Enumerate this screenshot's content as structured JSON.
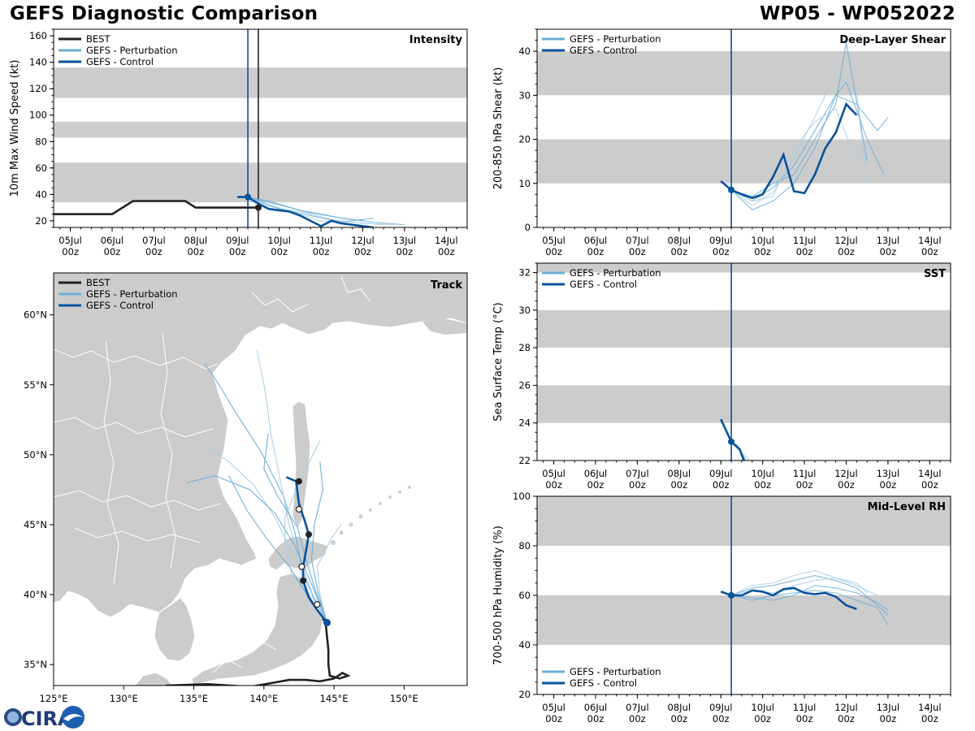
{
  "header": {
    "title": "GEFS Diagnostic Comparison",
    "storm": "WP05 - WP052022"
  },
  "logo": {
    "text": "CIRA"
  },
  "legend": {
    "best": "BEST",
    "perturbation": "GEFS - Perturbation",
    "control": "GEFS - Control"
  },
  "colors": {
    "best": "#222222",
    "perturbation": "#6baed6",
    "perturbation_light": "#a9cfe6",
    "control": "#08519c",
    "band": "#cccccc",
    "land": "#cccccc"
  },
  "time_axis": {
    "ticks": [
      {
        "day": 0,
        "label1": "05Jul",
        "label2": "00z"
      },
      {
        "day": 1,
        "label1": "06Jul",
        "label2": "00z"
      },
      {
        "day": 2,
        "label1": "07Jul",
        "label2": "00z"
      },
      {
        "day": 3,
        "label1": "08Jul",
        "label2": "00z"
      },
      {
        "day": 4,
        "label1": "09Jul",
        "label2": "00z"
      },
      {
        "day": 5,
        "label1": "10Jul",
        "label2": "00z"
      },
      {
        "day": 6,
        "label1": "11Jul",
        "label2": "00z"
      },
      {
        "day": 7,
        "label1": "12Jul",
        "label2": "00z"
      },
      {
        "day": 8,
        "label1": "13Jul",
        "label2": "00z"
      },
      {
        "day": 9,
        "label1": "14Jul",
        "label2": "00z"
      }
    ],
    "xlim_days": [
      -0.4,
      9.5
    ],
    "init_day": 4.25
  },
  "chart_data": [
    {
      "id": "intensity",
      "type": "line",
      "title": "Intensity",
      "ylabel": "10m Max Wind Speed (kt)",
      "ylim": [
        15,
        165
      ],
      "yticks": [
        20,
        40,
        60,
        80,
        100,
        120,
        140,
        160
      ],
      "bands": [
        [
          34,
          64
        ],
        [
          83,
          95
        ],
        [
          113,
          136
        ]
      ],
      "vlines": [
        4.25,
        4.5
      ],
      "best": {
        "x": [
          -0.5,
          0,
          0.5,
          1,
          1.5,
          2,
          2.5,
          2.75,
          3,
          3.5,
          4,
          4.25,
          4.5
        ],
        "y": [
          25,
          25,
          25,
          25,
          35,
          35,
          35,
          35,
          30,
          30,
          30,
          30,
          30
        ]
      },
      "best_marker": {
        "x": 4.5,
        "y": 30
      },
      "control": {
        "x": [
          4.0,
          4.25,
          4.5,
          4.75,
          5.0,
          5.25,
          5.5,
          5.75,
          6.0,
          6.25,
          6.5,
          7.0,
          7.25
        ],
        "y": [
          38,
          38,
          33,
          29,
          28,
          27,
          24,
          20,
          16,
          20,
          18,
          16,
          15
        ]
      },
      "control_marker": {
        "x": 4.25,
        "y": 38
      },
      "perturbations": [
        {
          "x": [
            4.25,
            5,
            5.75,
            6.5,
            7.25,
            8.0
          ],
          "y": [
            38,
            32,
            26,
            22,
            19,
            17
          ]
        },
        {
          "x": [
            4.25,
            4.75,
            5.5,
            6.25,
            7.0,
            7.75
          ],
          "y": [
            38,
            31,
            27,
            21,
            18,
            17
          ]
        },
        {
          "x": [
            4.25,
            5,
            5.75,
            6.5,
            7.25
          ],
          "y": [
            38,
            29,
            24,
            19,
            22
          ]
        },
        {
          "x": [
            4.25,
            5.25,
            6.0,
            6.75,
            7.5
          ],
          "y": [
            38,
            27,
            20,
            19,
            17
          ]
        },
        {
          "x": [
            4.25,
            4.75,
            5.5,
            6.5,
            7.0
          ],
          "y": [
            38,
            35,
            28,
            22,
            20
          ]
        }
      ]
    },
    {
      "id": "shear",
      "type": "line",
      "title": "Deep-Layer Shear",
      "ylabel": "200-850 hPa Shear (kt)",
      "ylim": [
        0,
        45
      ],
      "yticks": [
        0,
        10,
        20,
        30,
        40
      ],
      "bands": [
        [
          10,
          20
        ],
        [
          30,
          40
        ]
      ],
      "vlines": [
        4.25
      ],
      "control": {
        "x": [
          4.0,
          4.25,
          4.5,
          4.75,
          5.0,
          5.25,
          5.5,
          5.75,
          6.0,
          6.25,
          6.5,
          6.75,
          7.0,
          7.25
        ],
        "y": [
          10.5,
          8.5,
          7.5,
          6.7,
          7.5,
          11.5,
          16.5,
          8.2,
          7.8,
          12,
          18,
          21.5,
          28,
          25.5
        ]
      },
      "control_marker": {
        "x": 4.25,
        "y": 8.5
      },
      "perturbations": [
        {
          "x": [
            4.25,
            4.75,
            5.25,
            5.75,
            6.25,
            6.75,
            7.25,
            7.75,
            8.0
          ],
          "y": [
            8.5,
            6,
            9,
            14,
            22,
            30,
            28,
            22,
            25
          ]
        },
        {
          "x": [
            4.25,
            4.75,
            5.25,
            5.75,
            6.25,
            6.75,
            7.25,
            7.5
          ],
          "y": [
            8.5,
            5,
            8,
            16,
            25,
            35,
            31,
            10
          ]
        },
        {
          "x": [
            4.25,
            4.75,
            5.25,
            5.75,
            6.25,
            6.75,
            7.0,
            7.5
          ],
          "y": [
            8.5,
            7,
            10,
            12,
            20,
            28,
            42,
            15
          ]
        },
        {
          "x": [
            4.25,
            4.75,
            5.25,
            5.75,
            6.25,
            6.75,
            7.25,
            7.5
          ],
          "y": [
            8.5,
            6,
            7,
            18,
            24,
            27,
            15,
            18
          ]
        },
        {
          "x": [
            4.25,
            4.75,
            5.25,
            5.75,
            6.25,
            6.75,
            7.0,
            7.5,
            7.9
          ],
          "y": [
            8.5,
            4,
            6,
            10,
            18,
            30,
            33,
            20,
            12
          ]
        }
      ]
    },
    {
      "id": "sst",
      "type": "line",
      "title": "SST",
      "ylabel": "Sea Surface Temp (°C)",
      "ylim": [
        22,
        32.5
      ],
      "yticks": [
        22,
        24,
        26,
        28,
        30,
        32
      ],
      "bands": [
        [
          24,
          26
        ],
        [
          28,
          30
        ],
        [
          32,
          34
        ]
      ],
      "vlines": [
        4.25
      ],
      "control": {
        "x": [
          4.0,
          4.25,
          4.35,
          4.45,
          4.55
        ],
        "y": [
          24.2,
          23.0,
          22.8,
          22.6,
          22.0
        ]
      },
      "control_marker": {
        "x": 4.25,
        "y": 23.0
      },
      "perturbations": [
        {
          "x": [
            4.25,
            4.45,
            4.6
          ],
          "y": [
            23.0,
            22.6,
            22.0
          ]
        },
        {
          "x": [
            4.25,
            4.5,
            4.7
          ],
          "y": [
            23.0,
            22.4,
            22.0
          ]
        },
        {
          "x": [
            4.25,
            4.4,
            4.55
          ],
          "y": [
            23.0,
            22.8,
            22.0
          ]
        }
      ]
    },
    {
      "id": "rh",
      "type": "line",
      "title": "Mid-Level RH",
      "ylabel": "700-500 hPa Humidity (%)",
      "ylim": [
        20,
        100
      ],
      "yticks": [
        20,
        40,
        60,
        80,
        100
      ],
      "bands": [
        [
          40,
          60
        ],
        [
          80,
          100
        ]
      ],
      "vlines": [
        4.25
      ],
      "control": {
        "x": [
          4.0,
          4.25,
          4.5,
          4.75,
          5.0,
          5.25,
          5.5,
          5.75,
          6.0,
          6.25,
          6.5,
          6.75,
          7.0,
          7.25
        ],
        "y": [
          61.5,
          60,
          60,
          62,
          61.5,
          60,
          62.5,
          63,
          61,
          60.5,
          61,
          59.5,
          56,
          54.5
        ]
      },
      "control_marker": {
        "x": 4.25,
        "y": 60
      },
      "perturbations": [
        {
          "x": [
            4.25,
            4.75,
            5.25,
            5.75,
            6.25,
            6.75,
            7.25,
            7.75,
            8.0
          ],
          "y": [
            60,
            63,
            64,
            66,
            68,
            66,
            63,
            56,
            52
          ]
        },
        {
          "x": [
            4.25,
            4.75,
            5.25,
            5.75,
            6.25,
            6.75,
            7.25,
            7.75
          ],
          "y": [
            60,
            64,
            65,
            68,
            70,
            67,
            64,
            60
          ]
        },
        {
          "x": [
            4.25,
            4.75,
            5.25,
            5.75,
            6.25,
            6.75,
            7.25,
            7.75,
            8.0
          ],
          "y": [
            60,
            58,
            60,
            61,
            62,
            61,
            58,
            55,
            48
          ]
        },
        {
          "x": [
            4.25,
            4.75,
            5.25,
            5.75,
            6.25,
            6.75,
            7.25,
            7.5
          ],
          "y": [
            60,
            62,
            61,
            64,
            66,
            67,
            65,
            61
          ]
        },
        {
          "x": [
            4.25,
            4.75,
            5.25,
            5.75,
            6.25,
            6.75,
            7.25,
            7.75,
            8.0
          ],
          "y": [
            60,
            59,
            58,
            60,
            64,
            63,
            61,
            57,
            54
          ]
        }
      ]
    },
    {
      "id": "track",
      "type": "track",
      "title": "Track",
      "xlim_lon": [
        125,
        154.5
      ],
      "ylim_lat": [
        33.5,
        63
      ],
      "xticks": [
        {
          "v": 125,
          "label": "125°E"
        },
        {
          "v": 130,
          "label": "130°E"
        },
        {
          "v": 135,
          "label": "135°E"
        },
        {
          "v": 140,
          "label": "140°E"
        },
        {
          "v": 145,
          "label": "145°E"
        },
        {
          "v": 150,
          "label": "150°E"
        }
      ],
      "yticks": [
        {
          "v": 35,
          "label": "35°N"
        },
        {
          "v": 40,
          "label": "40°N"
        },
        {
          "v": 45,
          "label": "45°N"
        },
        {
          "v": 50,
          "label": "50°N"
        },
        {
          "v": 55,
          "label": "55°N"
        },
        {
          "v": 60,
          "label": "60°N"
        }
      ],
      "best": {
        "lon": [
          133,
          136,
          139,
          141.8,
          143,
          144,
          145,
          145.6,
          146,
          145.4,
          144.7,
          144.6,
          144.6,
          144.5,
          144.4,
          144.2
        ],
        "lat": [
          33.5,
          33.6,
          33.4,
          33.9,
          33.9,
          33.8,
          34.0,
          34.4,
          34.2,
          34.0,
          34.2,
          35.0,
          36.0,
          37.0,
          38.0,
          38.3
        ]
      },
      "control": {
        "lon": [
          144.5,
          143.8,
          143.2,
          142.8,
          142.8,
          143.0,
          143.2,
          142.9,
          142.5,
          142.3,
          141.6
        ],
        "lat": [
          38.0,
          38.9,
          39.8,
          41.0,
          42.0,
          43.1,
          44.3,
          45.3,
          46.5,
          48.1,
          48.4
        ]
      },
      "control_markers_filled": [
        {
          "lon": 142.8,
          "lat": 41.0
        },
        {
          "lon": 143.2,
          "lat": 44.3
        },
        {
          "lon": 142.5,
          "lat": 48.1
        }
      ],
      "control_markers_open": [
        {
          "lon": 143.8,
          "lat": 39.3
        },
        {
          "lon": 142.7,
          "lat": 42.0
        },
        {
          "lon": 142.5,
          "lat": 46.1
        }
      ],
      "control_start": {
        "lon": 144.5,
        "lat": 38.0
      },
      "perturbations": [
        {
          "lon": [
            144.5,
            143.5,
            142.7,
            142.2,
            141.4,
            139.8,
            138.0,
            136.8,
            135.8
          ],
          "lat": [
            38.0,
            39.8,
            42.0,
            44.5,
            47.0,
            50.2,
            53.0,
            55.0,
            56.5
          ]
        },
        {
          "lon": [
            144.5,
            143.5,
            142.5,
            141.8,
            141.2,
            140.5,
            140.1,
            139.5
          ],
          "lat": [
            38.0,
            40.0,
            42.5,
            45.0,
            48.0,
            51.5,
            54.5,
            57.5
          ]
        },
        {
          "lon": [
            144.5,
            143.9,
            143.4,
            143.6,
            144.2,
            144.0
          ],
          "lat": [
            38.0,
            40.0,
            42.5,
            45.0,
            47.5,
            49.5
          ]
        },
        {
          "lon": [
            144.5,
            143.2,
            142.0,
            140.8,
            139.3,
            137.5,
            136.0
          ],
          "lat": [
            38.0,
            40.5,
            43.0,
            45.5,
            47.8,
            49.5,
            50.5
          ]
        },
        {
          "lon": [
            144.5,
            143.7,
            143.0,
            142.4,
            141.0,
            140.0,
            140.3
          ],
          "lat": [
            38.0,
            40.2,
            42.5,
            44.8,
            47.0,
            49.0,
            51.5
          ]
        },
        {
          "lon": [
            144.5,
            144.0,
            143.8,
            144.8,
            145.5
          ],
          "lat": [
            38.0,
            40.0,
            42.0,
            44.0,
            45.0
          ]
        },
        {
          "lon": [
            144.5,
            143.5,
            142.2,
            140.8,
            139.0,
            136.5,
            134.5
          ],
          "lat": [
            38.0,
            40.5,
            43.5,
            45.8,
            47.5,
            48.5,
            48.0
          ]
        },
        {
          "lon": [
            144.5,
            143.4,
            142.0,
            141.5,
            141.5,
            142.5,
            144.0
          ],
          "lat": [
            38.0,
            39.5,
            41.5,
            43.5,
            45.5,
            48.0,
            51.0
          ]
        },
        {
          "lon": [
            144.5,
            143.2,
            141.8,
            140.2,
            138.8,
            137.5
          ],
          "lat": [
            38.0,
            39.8,
            42.0,
            44.0,
            46.0,
            48.5
          ]
        }
      ]
    }
  ]
}
